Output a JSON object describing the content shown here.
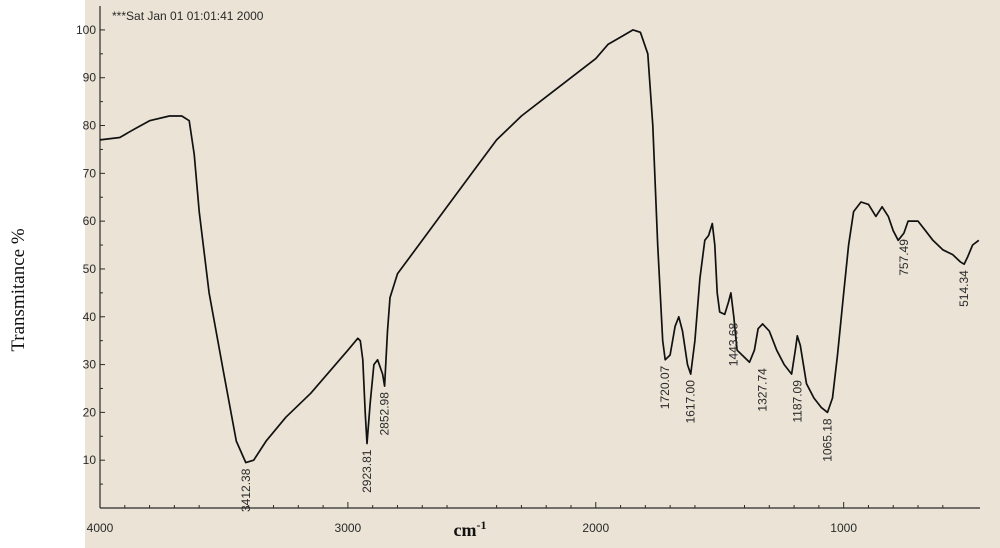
{
  "chart_data": {
    "type": "line",
    "title": "",
    "timestamp": "***Sat Jan 01 01:01:41 2000",
    "xlabel": "cm",
    "xlabel_superscript": "-1",
    "ylabel": "Transmitance %",
    "xlim": [
      4000,
      450
    ],
    "ylim": [
      0,
      105
    ],
    "x_ticks": [
      4000,
      3000,
      2000,
      1000
    ],
    "y_ticks": [
      10,
      20,
      30,
      40,
      50,
      60,
      70,
      80,
      90,
      100
    ],
    "x_tick_labels": [
      "4000",
      "3000",
      "2000",
      "1000"
    ],
    "y_tick_labels": [
      "10",
      "20",
      "30",
      "40",
      "50",
      "60",
      "70",
      "80",
      "90",
      "100"
    ],
    "series": [
      {
        "points": [
          [
            4000,
            77
          ],
          [
            3920,
            77.5
          ],
          [
            3870,
            79
          ],
          [
            3800,
            81
          ],
          [
            3720,
            82
          ],
          [
            3670,
            82
          ],
          [
            3640,
            81
          ],
          [
            3620,
            74
          ],
          [
            3600,
            62
          ],
          [
            3560,
            45
          ],
          [
            3500,
            28
          ],
          [
            3450,
            14
          ],
          [
            3412,
            9.5
          ],
          [
            3380,
            10
          ],
          [
            3330,
            14
          ],
          [
            3250,
            19
          ],
          [
            3150,
            24
          ],
          [
            3050,
            30
          ],
          [
            3000,
            33
          ],
          [
            2960,
            35.5
          ],
          [
            2950,
            35
          ],
          [
            2940,
            31
          ],
          [
            2930,
            20
          ],
          [
            2923,
            13.5
          ],
          [
            2910,
            22
          ],
          [
            2895,
            30
          ],
          [
            2880,
            31
          ],
          [
            2860,
            28
          ],
          [
            2852,
            25.5
          ],
          [
            2840,
            37
          ],
          [
            2830,
            44
          ],
          [
            2800,
            49
          ],
          [
            2700,
            56
          ],
          [
            2600,
            63
          ],
          [
            2500,
            70
          ],
          [
            2400,
            77
          ],
          [
            2300,
            82
          ],
          [
            2200,
            86
          ],
          [
            2100,
            90
          ],
          [
            2000,
            94
          ],
          [
            1950,
            97
          ],
          [
            1900,
            98.5
          ],
          [
            1850,
            100
          ],
          [
            1820,
            99.5
          ],
          [
            1790,
            95
          ],
          [
            1770,
            80
          ],
          [
            1750,
            55
          ],
          [
            1730,
            35
          ],
          [
            1720,
            31
          ],
          [
            1700,
            32
          ],
          [
            1680,
            38
          ],
          [
            1665,
            40
          ],
          [
            1650,
            37
          ],
          [
            1630,
            30
          ],
          [
            1617,
            28
          ],
          [
            1600,
            35
          ],
          [
            1580,
            48
          ],
          [
            1560,
            56
          ],
          [
            1545,
            57
          ],
          [
            1530,
            59.5
          ],
          [
            1520,
            55
          ],
          [
            1510,
            45
          ],
          [
            1500,
            41
          ],
          [
            1480,
            40.5
          ],
          [
            1465,
            43
          ],
          [
            1455,
            45
          ],
          [
            1443,
            40
          ],
          [
            1430,
            33
          ],
          [
            1400,
            31.5
          ],
          [
            1380,
            30.5
          ],
          [
            1360,
            33
          ],
          [
            1345,
            37.5
          ],
          [
            1327,
            38.5
          ],
          [
            1300,
            37
          ],
          [
            1270,
            33
          ],
          [
            1240,
            30
          ],
          [
            1210,
            28
          ],
          [
            1195,
            33
          ],
          [
            1187,
            36
          ],
          [
            1175,
            34
          ],
          [
            1150,
            26
          ],
          [
            1120,
            23
          ],
          [
            1090,
            21
          ],
          [
            1065,
            20
          ],
          [
            1045,
            23
          ],
          [
            1025,
            32
          ],
          [
            1000,
            45
          ],
          [
            980,
            55
          ],
          [
            960,
            62
          ],
          [
            930,
            64
          ],
          [
            900,
            63.5
          ],
          [
            870,
            61
          ],
          [
            845,
            63
          ],
          [
            820,
            61
          ],
          [
            800,
            58
          ],
          [
            780,
            56
          ],
          [
            757,
            57.5
          ],
          [
            740,
            60
          ],
          [
            700,
            60
          ],
          [
            670,
            58
          ],
          [
            640,
            56
          ],
          [
            600,
            54
          ],
          [
            560,
            53
          ],
          [
            530,
            51.5
          ],
          [
            514,
            51
          ],
          [
            500,
            52.5
          ],
          [
            480,
            55
          ],
          [
            455,
            56
          ]
        ]
      }
    ],
    "peak_labels": [
      {
        "label": "3412.38",
        "x": 3412,
        "y": 9.5
      },
      {
        "label": "2923.81",
        "x": 2923.81,
        "y": 13.5
      },
      {
        "label": "2852.98",
        "x": 2852.98,
        "y": 25.5
      },
      {
        "label": "1720.07",
        "x": 1720.07,
        "y": 31
      },
      {
        "label": "1617.00",
        "x": 1617,
        "y": 28
      },
      {
        "label": "1443.68",
        "x": 1443.68,
        "y": 40
      },
      {
        "label": "1327.74",
        "x": 1327.74,
        "y": 30.5
      },
      {
        "label": "1187.09",
        "x": 1187.09,
        "y": 28
      },
      {
        "label": "1065.18",
        "x": 1065.18,
        "y": 20
      },
      {
        "label": "757.49",
        "x": 757.49,
        "y": 57.5
      },
      {
        "label": "514.34",
        "x": 514.34,
        "y": 51
      }
    ]
  }
}
